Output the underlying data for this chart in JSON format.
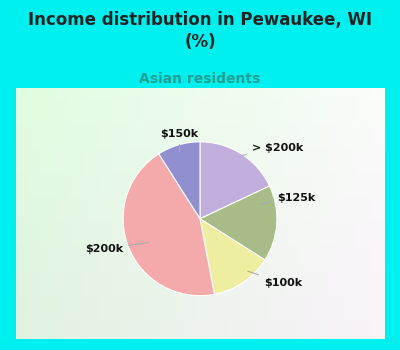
{
  "title": "Income distribution in Pewaukee, WI\n(%)",
  "subtitle": "Asian residents",
  "title_color": "#222222",
  "subtitle_color": "#20a090",
  "background_color": "#00f0f0",
  "slices": [
    {
      "label": "> $200k",
      "value": 18,
      "color": "#c0aedd"
    },
    {
      "label": "$125k",
      "value": 16,
      "color": "#a8bc88"
    },
    {
      "label": "$100k",
      "value": 13,
      "color": "#eeeea0"
    },
    {
      "label": "$200k",
      "value": 44,
      "color": "#f4aaaa"
    },
    {
      "label": "$150k",
      "value": 9,
      "color": "#9090d0"
    }
  ],
  "startangle": 90,
  "label_font_size": 8,
  "label_color": "#111111"
}
